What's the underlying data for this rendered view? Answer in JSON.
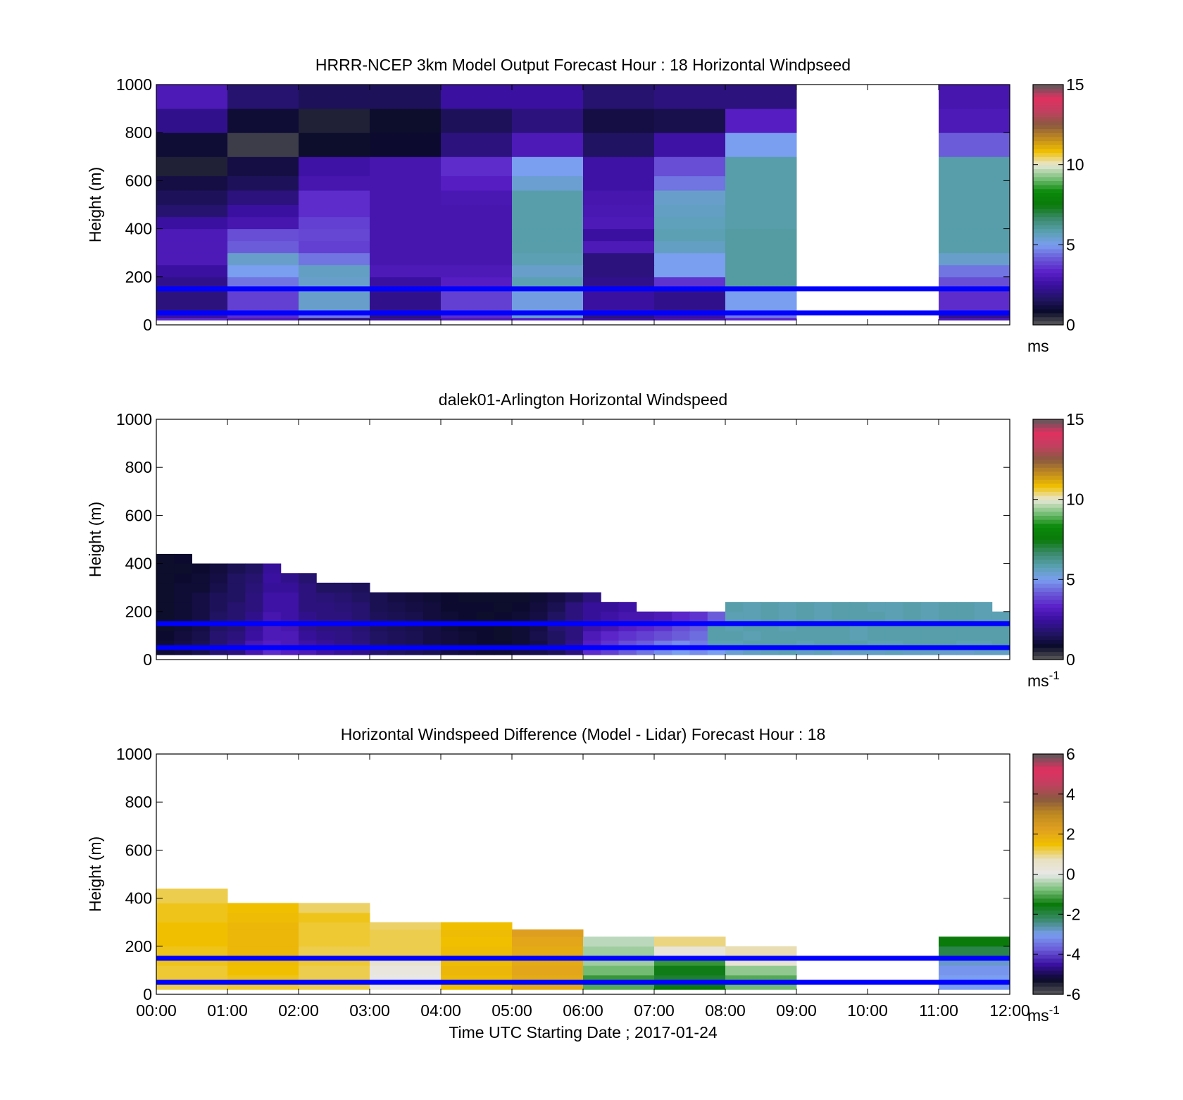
{
  "colors": {
    "model_cmap": [
      "#5a5a5a",
      "#0a0a2a",
      "#221466",
      "#3a10a0",
      "#5a20c8",
      "#6a5ad8",
      "#7a9ef0",
      "#5aa0b0",
      "#3a8a6a",
      "#0a7a0a",
      "#0a8a0a",
      "#7ac07a",
      "#e8e8d8",
      "#f0c000",
      "#c08a20",
      "#8a5a40",
      "#c04060",
      "#e03060",
      "#5a5a5a"
    ],
    "diff_cmap": [
      "#5a5a5a",
      "#0a0a2a",
      "#3a10a0",
      "#6a5ad8",
      "#7a9ef0",
      "#3a8a6a",
      "#0a7a0a",
      "#7ac07a",
      "#e8e8e8",
      "#e8e0c0",
      "#f0c000",
      "#e0a020",
      "#c08a20",
      "#8a5a40",
      "#c04060",
      "#e03060",
      "#5a5a5a"
    ],
    "reference_line": "#0000ff"
  },
  "chart_data": [
    {
      "type": "heatmap",
      "title": "HRRR-NCEP 3km Model Output   Forecast Hour : 18 Horizontal Windpseed",
      "xlabel": "",
      "ylabel": "Height (m)",
      "colorbar_label": "ms",
      "xlim": [
        0,
        12
      ],
      "ylim": [
        0,
        1000
      ],
      "yticks": [
        0,
        200,
        400,
        600,
        800,
        1000
      ],
      "colorbar_ticks": [
        0,
        5,
        10,
        15
      ],
      "colorbar_range": [
        0,
        15
      ],
      "reference_lines_m": [
        150,
        50
      ],
      "x_hours": [
        0,
        1,
        2,
        3,
        4,
        5,
        6,
        7,
        8,
        9,
        10,
        11
      ],
      "level_tops_m": [
        30,
        60,
        150,
        200,
        250,
        300,
        350,
        400,
        450,
        500,
        560,
        620,
        700,
        800,
        900,
        1000
      ],
      "values": [
        [
          3.5,
          3.0,
          2.0,
          2.5,
          3.0,
          3.2,
          2.5,
          2.8,
          3.4,
          null,
          null,
          3.0
        ],
        [
          2.5,
          3.5,
          4.5,
          2.0,
          3.5,
          5.5,
          2.0,
          2.5,
          4.5,
          null,
          null,
          2.2
        ],
        [
          2.0,
          3.8,
          5.5,
          2.2,
          3.8,
          5.2,
          2.5,
          2.2,
          5.0,
          null,
          null,
          3.5
        ],
        [
          2.2,
          4.5,
          5.5,
          2.5,
          3.2,
          5.8,
          2.2,
          3.6,
          6.0,
          null,
          null,
          4.0
        ],
        [
          2.5,
          5.0,
          5.6,
          3.0,
          3.0,
          5.5,
          2.0,
          5.0,
          6.0,
          null,
          null,
          4.5
        ],
        [
          3.0,
          5.5,
          4.5,
          2.8,
          2.8,
          5.8,
          2.0,
          5.0,
          6.0,
          null,
          null,
          5.5
        ],
        [
          3.0,
          4.2,
          3.8,
          2.8,
          2.8,
          5.9,
          3.0,
          5.6,
          6.0,
          null,
          null,
          5.9
        ],
        [
          3.0,
          4.0,
          3.9,
          2.8,
          2.8,
          5.9,
          2.5,
          5.8,
          6.0,
          null,
          null,
          5.9
        ],
        [
          2.5,
          2.8,
          3.8,
          2.8,
          2.8,
          5.9,
          3.0,
          5.7,
          5.9,
          null,
          null,
          5.9
        ],
        [
          1.8,
          2.5,
          3.5,
          2.8,
          2.8,
          5.9,
          2.9,
          5.6,
          5.9,
          null,
          null,
          5.9
        ],
        [
          1.5,
          2.0,
          3.5,
          2.8,
          2.9,
          5.9,
          2.8,
          5.5,
          5.9,
          null,
          null,
          5.9
        ],
        [
          1.2,
          1.5,
          2.8,
          2.8,
          3.2,
          5.4,
          2.6,
          4.5,
          5.9,
          null,
          null,
          5.9
        ],
        [
          0.6,
          1.2,
          2.6,
          2.8,
          3.5,
          5.0,
          2.6,
          4.0,
          5.9,
          null,
          null,
          5.9
        ],
        [
          1.0,
          0.3,
          0.8,
          0.9,
          2.0,
          3.0,
          1.6,
          2.6,
          5.0,
          null,
          null,
          4.2
        ],
        [
          2.2,
          1.0,
          0.6,
          0.8,
          1.5,
          2.0,
          1.2,
          1.3,
          3.2,
          null,
          null,
          3.0
        ],
        [
          3.0,
          1.8,
          1.5,
          1.5,
          2.5,
          2.5,
          1.8,
          2.0,
          2.0,
          null,
          null,
          2.8
        ]
      ]
    },
    {
      "type": "heatmap",
      "title": "dalek01-Arlington  Horizontal Windspeed",
      "xlabel": "",
      "ylabel": "Height (m)",
      "colorbar_label": "ms-1",
      "xlim": [
        0,
        12
      ],
      "ylim": [
        0,
        1000
      ],
      "yticks": [
        0,
        200,
        400,
        600,
        800,
        1000
      ],
      "colorbar_ticks": [
        0,
        5,
        10,
        15
      ],
      "colorbar_range": [
        0,
        15
      ],
      "reference_lines_m": [
        150,
        50
      ],
      "x_hours": [
        0,
        0.25,
        0.5,
        0.75,
        1,
        1.25,
        1.5,
        1.75,
        2,
        2.25,
        2.5,
        2.75,
        3,
        3.25,
        3.5,
        3.75,
        4,
        4.25,
        4.5,
        4.75,
        5,
        5.25,
        5.5,
        5.75,
        6,
        6.25,
        6.5,
        6.75,
        7,
        7.25,
        7.5,
        7.75,
        8,
        8.25,
        8.5,
        8.75,
        9,
        9.25,
        9.5,
        9.75,
        10,
        10.25,
        10.5,
        10.75,
        11,
        11.25,
        11.5,
        11.75
      ],
      "level_tops_m": [
        40,
        80,
        120,
        160,
        200,
        240,
        280,
        320,
        360,
        400,
        440
      ],
      "values": [
        [
          1.0,
          1.1,
          1.3,
          1.8,
          2.0,
          2.8,
          3.5,
          3.2,
          3.0,
          2.6,
          2.4,
          2.2,
          1.8,
          1.6,
          1.5,
          1.4,
          1.2,
          1.1,
          1.0,
          1.0,
          1.2,
          1.3,
          1.5,
          2.0,
          3.5,
          3.8,
          4.2,
          4.5,
          4.8,
          5.0,
          4.8,
          5.0,
          5.4,
          5.6,
          5.7,
          5.8,
          5.6,
          5.7,
          5.5,
          5.6,
          5.6,
          5.7,
          5.6,
          5.6,
          5.5,
          5.5,
          5.6,
          5.6
        ],
        [
          1.0,
          1.2,
          1.4,
          1.8,
          2.2,
          2.9,
          3.2,
          3.0,
          2.6,
          2.4,
          2.2,
          2.0,
          1.6,
          1.5,
          1.4,
          1.2,
          1.1,
          1.0,
          0.9,
          0.9,
          1.0,
          1.2,
          1.6,
          2.2,
          3.2,
          3.6,
          4.0,
          4.2,
          4.6,
          4.8,
          4.6,
          5.8,
          5.8,
          5.9,
          5.9,
          5.9,
          5.8,
          5.9,
          5.9,
          5.9,
          5.8,
          5.8,
          5.9,
          5.9,
          5.9,
          5.8,
          5.8,
          5.9
        ],
        [
          0.9,
          1.1,
          1.3,
          1.8,
          2.0,
          2.5,
          3.0,
          3.0,
          2.4,
          2.2,
          2.1,
          1.9,
          1.6,
          1.5,
          1.4,
          1.2,
          1.1,
          1.0,
          0.9,
          0.8,
          1.0,
          1.3,
          1.6,
          2.0,
          3.0,
          3.4,
          3.6,
          3.8,
          4.0,
          4.2,
          4.4,
          5.9,
          5.9,
          5.8,
          5.9,
          5.9,
          5.9,
          5.9,
          5.9,
          5.8,
          5.9,
          5.9,
          5.9,
          5.9,
          5.9,
          5.9,
          5.9,
          5.9
        ],
        [
          0.8,
          1.0,
          1.2,
          1.6,
          1.8,
          2.4,
          3.0,
          2.8,
          2.2,
          2.0,
          2.0,
          1.8,
          1.5,
          1.4,
          1.3,
          1.2,
          1.0,
          0.9,
          0.9,
          0.8,
          1.0,
          1.2,
          1.8,
          2.0,
          2.6,
          2.8,
          3.2,
          3.4,
          3.6,
          4.0,
          4.2,
          5.9,
          5.8,
          5.9,
          5.9,
          5.8,
          5.9,
          5.9,
          5.9,
          5.8,
          5.9,
          5.9,
          5.9,
          5.9,
          5.9,
          5.9,
          5.9,
          5.9
        ],
        [
          0.8,
          1.0,
          1.2,
          1.6,
          1.8,
          2.2,
          2.8,
          2.6,
          2.2,
          2.0,
          2.0,
          1.8,
          1.5,
          1.4,
          1.3,
          1.1,
          1.0,
          0.9,
          0.8,
          0.9,
          1.0,
          1.2,
          1.6,
          2.0,
          2.4,
          2.6,
          2.8,
          2.8,
          3.0,
          3.4,
          3.6,
          4.2,
          5.8,
          5.8,
          5.9,
          5.8,
          5.9,
          5.8,
          5.9,
          5.9,
          5.9,
          5.8,
          5.9,
          5.8,
          5.9,
          5.9,
          5.8,
          5.8
        ],
        [
          0.8,
          1.0,
          1.2,
          1.5,
          1.8,
          2.0,
          2.6,
          2.6,
          2.0,
          2.0,
          1.9,
          1.8,
          1.4,
          1.3,
          1.2,
          1.1,
          0.9,
          0.9,
          0.9,
          0.8,
          0.9,
          1.1,
          1.4,
          2.0,
          2.4,
          2.4,
          2.6,
          null,
          null,
          null,
          null,
          null,
          5.9,
          5.8,
          5.9,
          5.8,
          5.9,
          5.8,
          5.9,
          5.9,
          5.8,
          5.8,
          5.9,
          5.8,
          5.9,
          5.9,
          5.8,
          null
        ],
        [
          0.8,
          1.0,
          1.2,
          1.5,
          1.6,
          2.0,
          2.6,
          2.6,
          2.0,
          1.9,
          1.8,
          1.6,
          1.4,
          1.2,
          1.1,
          1.0,
          0.9,
          0.8,
          0.8,
          0.8,
          0.8,
          1.0,
          1.2,
          1.5,
          2.0,
          null,
          null,
          null,
          null,
          null,
          null,
          null,
          null,
          null,
          null,
          null,
          null,
          null,
          null,
          null,
          null,
          null,
          null,
          null,
          null,
          null,
          null,
          null
        ],
        [
          0.8,
          1.0,
          1.0,
          1.3,
          1.6,
          1.9,
          2.4,
          2.4,
          2.0,
          1.6,
          1.6,
          1.5,
          null,
          null,
          null,
          null,
          null,
          null,
          null,
          null,
          null,
          null,
          null,
          null,
          null,
          null,
          null,
          null,
          null,
          null,
          null,
          null,
          null,
          null,
          null,
          null,
          null,
          null,
          null,
          null,
          null,
          null,
          null,
          null,
          null,
          null,
          null,
          null
        ],
        [
          0.8,
          0.9,
          1.0,
          1.2,
          1.6,
          1.8,
          2.5,
          2.2,
          1.8,
          null,
          null,
          null,
          null,
          null,
          null,
          null,
          null,
          null,
          null,
          null,
          null,
          null,
          null,
          null,
          null,
          null,
          null,
          null,
          null,
          null,
          null,
          null,
          null,
          null,
          null,
          null,
          null,
          null,
          null,
          null,
          null,
          null,
          null,
          null,
          null,
          null,
          null,
          null
        ],
        [
          0.8,
          0.8,
          0.9,
          1.1,
          1.4,
          1.6,
          2.4,
          null,
          null,
          null,
          null,
          null,
          null,
          null,
          null,
          null,
          null,
          null,
          null,
          null,
          null,
          null,
          null,
          null,
          null,
          null,
          null,
          null,
          null,
          null,
          null,
          null,
          null,
          null,
          null,
          null,
          null,
          null,
          null,
          null,
          null,
          null,
          null,
          null,
          null,
          null,
          null,
          null
        ],
        [
          0.8,
          0.9,
          null,
          null,
          null,
          null,
          null,
          null,
          null,
          null,
          null,
          null,
          null,
          null,
          null,
          null,
          null,
          null,
          null,
          null,
          null,
          null,
          null,
          null,
          null,
          null,
          null,
          null,
          null,
          null,
          null,
          null,
          null,
          null,
          null,
          null,
          null,
          null,
          null,
          null,
          null,
          null,
          null,
          null,
          null,
          null,
          null,
          null
        ]
      ]
    },
    {
      "type": "heatmap",
      "title": "Horizontal Windspeed Difference (Model - Lidar) Forecast Hour : 18",
      "xlabel": "Time UTC  Starting Date ; 2017-01-24",
      "ylabel": "Height (m)",
      "colorbar_label": "ms-1",
      "xlim": [
        0,
        12
      ],
      "ylim": [
        0,
        1000
      ],
      "xticks": [
        "00:00",
        "01:00",
        "02:00",
        "03:00",
        "04:00",
        "05:00",
        "06:00",
        "07:00",
        "08:00",
        "09:00",
        "10:00",
        "11:00",
        "12:00"
      ],
      "yticks": [
        0,
        200,
        400,
        600,
        800,
        1000
      ],
      "colorbar_ticks": [
        -6,
        -4,
        -2,
        0,
        2,
        4,
        6
      ],
      "colorbar_range": [
        -6,
        6
      ],
      "reference_lines_m": [
        150,
        50
      ],
      "x_hours": [
        0,
        1,
        2,
        3,
        4,
        5,
        6,
        7,
        8,
        9,
        10,
        11
      ],
      "level_tops_m": [
        40,
        80,
        120,
        160,
        200,
        240,
        270,
        300,
        340,
        380,
        440
      ],
      "values": [
        [
          1.2,
          1.3,
          1.2,
          0.2,
          1.5,
          2.0,
          -1.0,
          -1.5,
          -0.8,
          null,
          null,
          -3.0
        ],
        [
          1.3,
          1.4,
          1.2,
          0.1,
          1.6,
          2.0,
          -1.2,
          -1.8,
          -1.0,
          null,
          null,
          -3.0
        ],
        [
          1.3,
          1.5,
          1.2,
          0.2,
          1.7,
          2.1,
          -0.8,
          -1.6,
          -0.6,
          null,
          null,
          -3.1
        ],
        [
          1.4,
          1.6,
          1.3,
          0.5,
          1.6,
          2.0,
          -0.5,
          -1.2,
          0.4,
          null,
          null,
          -2.8
        ],
        [
          1.4,
          1.7,
          1.2,
          1.2,
          1.6,
          2.0,
          -0.5,
          0.3,
          0.8,
          null,
          null,
          -2.0
        ],
        [
          1.5,
          1.7,
          1.3,
          1.2,
          1.5,
          2.1,
          -0.3,
          1.0,
          null,
          null,
          null,
          -1.5
        ],
        [
          1.5,
          1.7,
          1.3,
          1.2,
          1.6,
          2.3,
          null,
          null,
          null,
          null,
          null,
          null
        ],
        [
          1.5,
          1.7,
          1.3,
          1.1,
          1.5,
          null,
          null,
          null,
          null,
          null,
          null,
          null
        ],
        [
          1.4,
          1.6,
          1.4,
          null,
          null,
          null,
          null,
          null,
          null,
          null,
          null,
          null
        ],
        [
          1.4,
          1.5,
          1.1,
          null,
          null,
          null,
          null,
          null,
          null,
          null,
          null,
          null
        ],
        [
          1.2,
          null,
          null,
          null,
          null,
          null,
          null,
          null,
          null,
          null,
          null,
          null
        ]
      ]
    }
  ]
}
